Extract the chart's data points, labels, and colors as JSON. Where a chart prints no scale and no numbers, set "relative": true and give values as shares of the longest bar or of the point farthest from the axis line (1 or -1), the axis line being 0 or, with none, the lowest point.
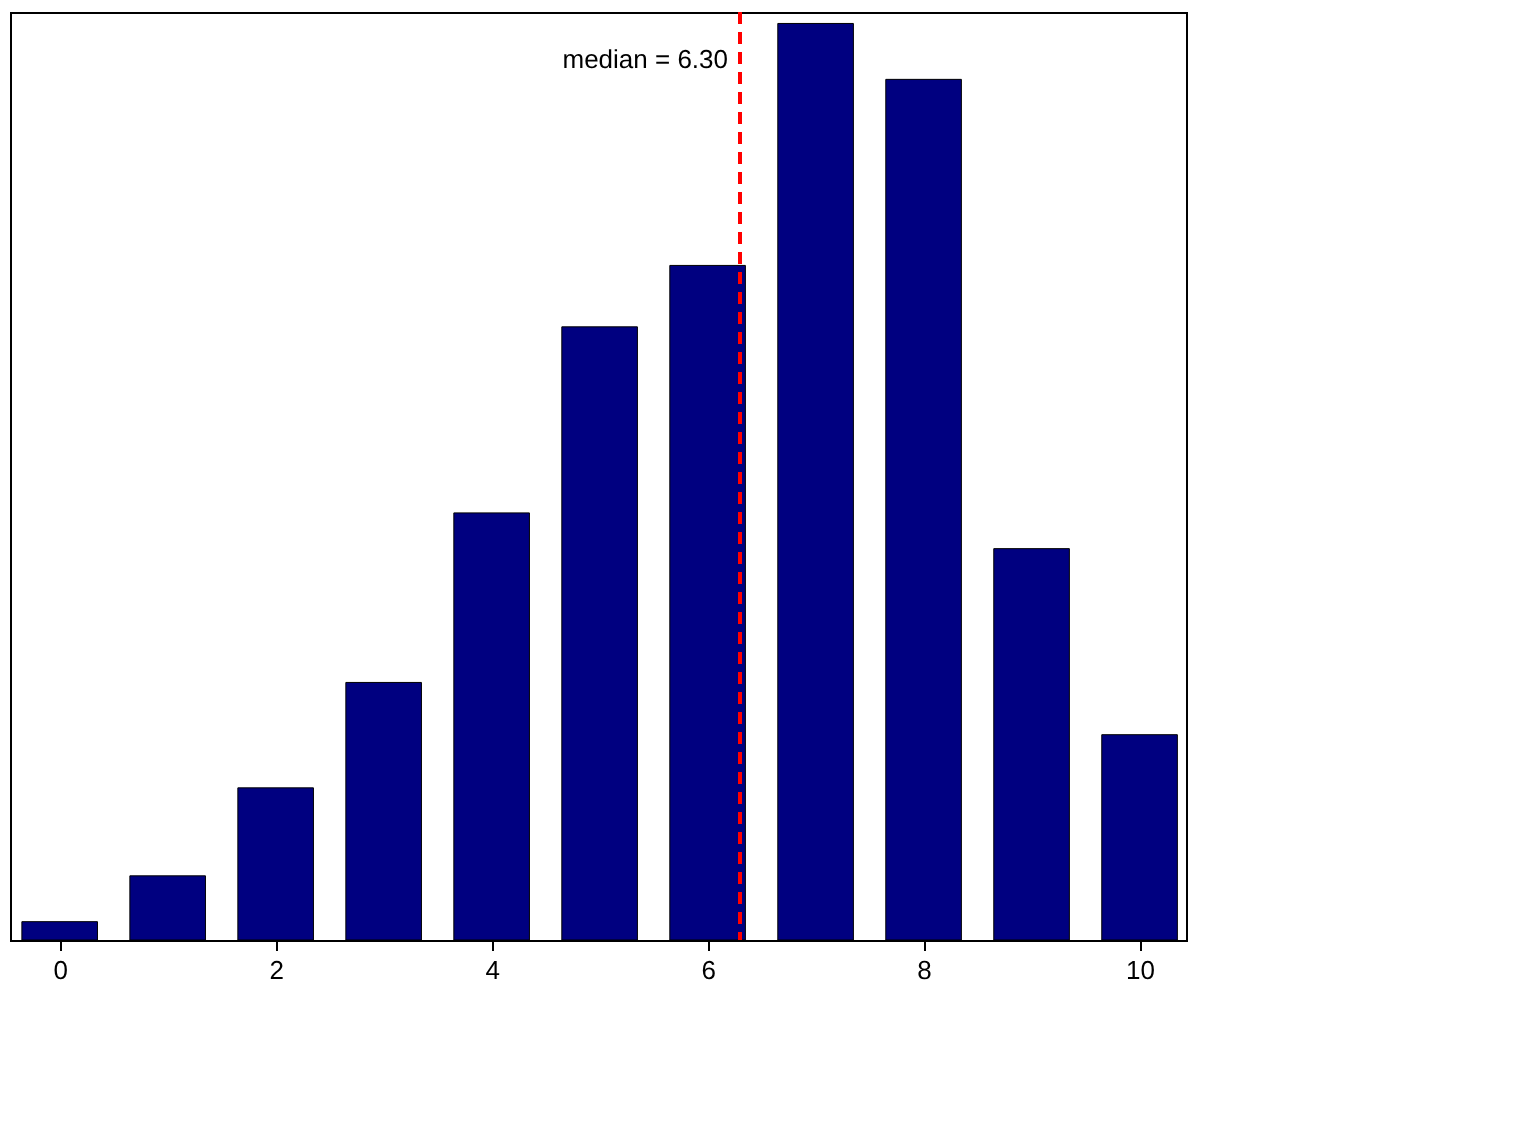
{
  "chart_data": {
    "type": "bar",
    "relative": true,
    "x": [
      0,
      1,
      2,
      3,
      4,
      5,
      6,
      7,
      8,
      9,
      10
    ],
    "values": [
      0.02,
      0.07,
      0.166,
      0.281,
      0.466,
      0.669,
      0.736,
      1,
      0.939,
      0.427,
      0.224
    ],
    "color": "#000080",
    "xlim": [
      -0.46,
      10.43
    ],
    "xticks": [
      0,
      2,
      4,
      6,
      8,
      10
    ],
    "grid": false,
    "ref_lines": [
      {
        "axis": "x",
        "value": 6.3,
        "label": "median =  6.30",
        "color": "#ff0000",
        "line_style": "dashed"
      }
    ]
  }
}
